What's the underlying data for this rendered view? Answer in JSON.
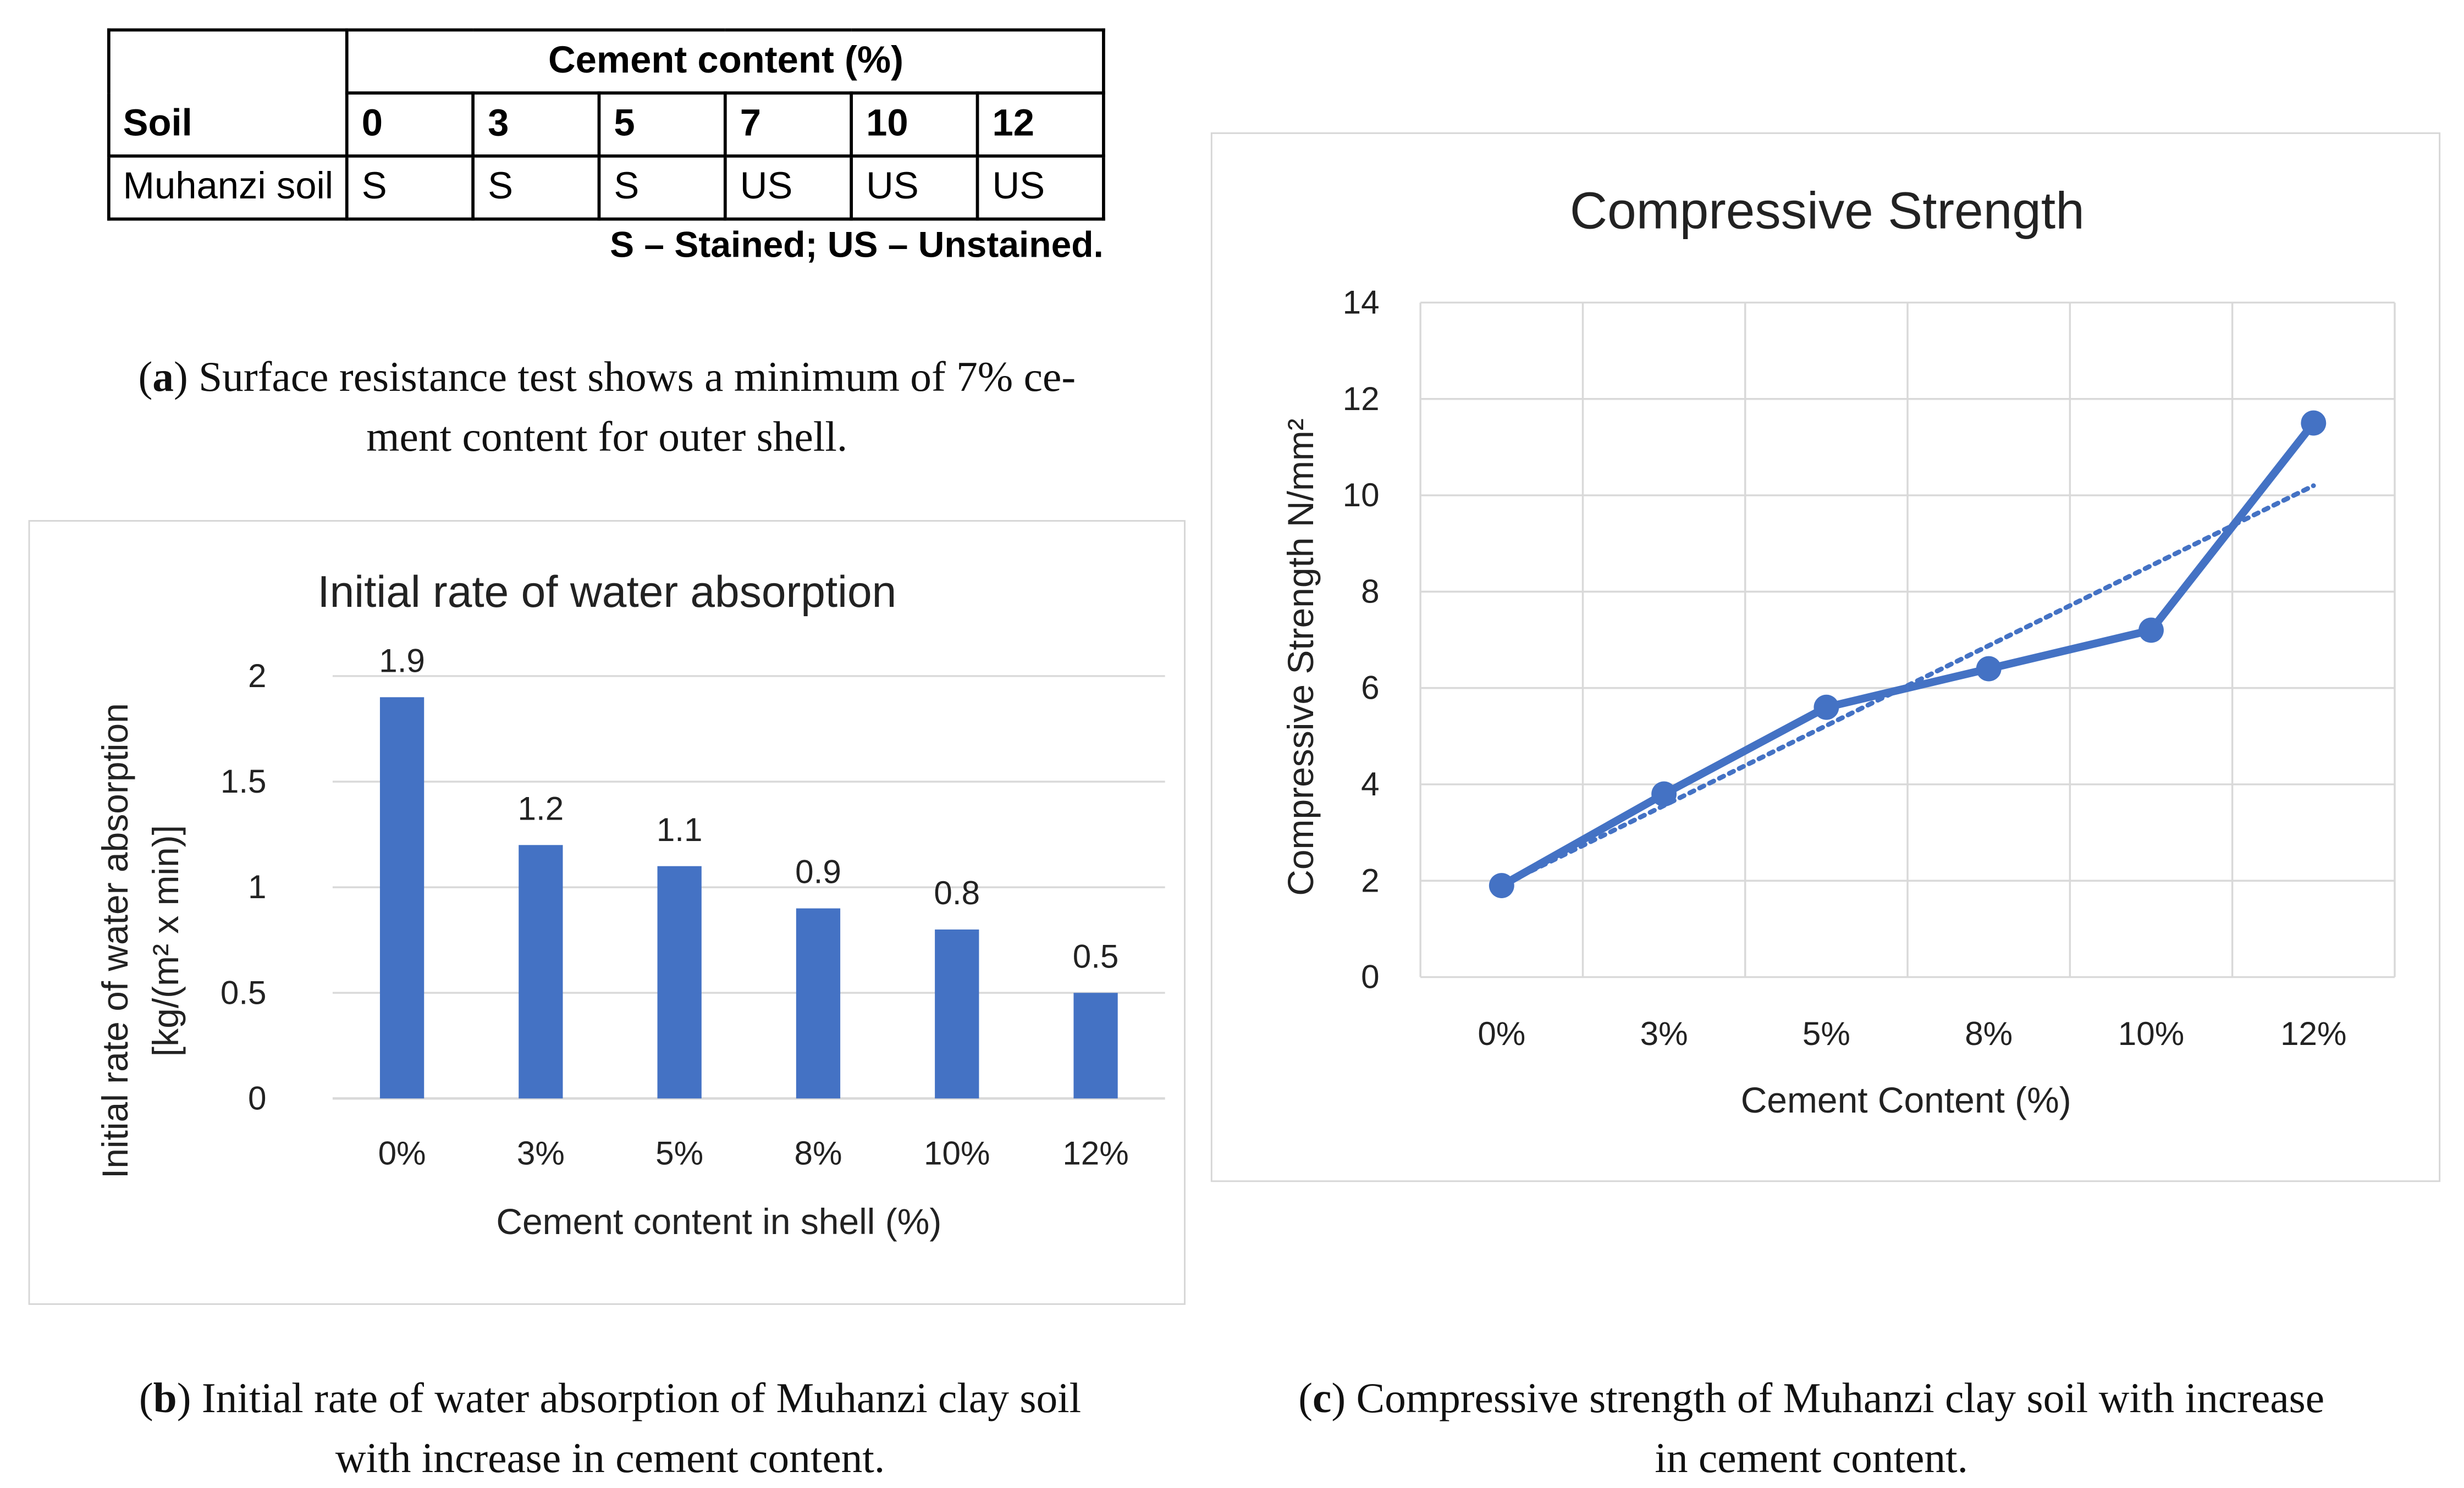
{
  "table": {
    "soil_header": "Soil",
    "cement_header": "Cement content (%)",
    "columns": [
      "0",
      "3",
      "5",
      "7",
      "10",
      "12"
    ],
    "row_label": "Muhanzi soil",
    "row_values": [
      "S",
      "S",
      "S",
      "US",
      "US",
      "US"
    ],
    "note": "S – Stained; US – Unstained."
  },
  "caption_a": {
    "label": "a",
    "line1": "Surface resistance test shows a minimum of 7% ce-",
    "line2": "ment content for outer shell."
  },
  "caption_b": {
    "label": "b",
    "line1": "Initial rate of water absorption of Muhanzi clay soil",
    "line2": "with increase in cement content."
  },
  "caption_c": {
    "label": "c",
    "line1": "Compressive strength of Muhanzi clay soil with increase",
    "line2": "in cement content."
  },
  "colors": {
    "series": "#4472C4",
    "grid": "#d9d9d9",
    "border": "#d6d6d6"
  },
  "chart_data": [
    {
      "type": "bar",
      "title": "Initial rate of water absorption",
      "xlabel": "Cement content in shell (%)",
      "ylabel_line1": "Initial rate of water absorption",
      "ylabel_line2": "[kg/(m² x min)]",
      "categories": [
        "0%",
        "3%",
        "5%",
        "8%",
        "10%",
        "12%"
      ],
      "values": [
        1.9,
        1.2,
        1.1,
        0.9,
        0.8,
        0.5
      ],
      "data_labels": [
        "1.9",
        "1.2",
        "1.1",
        "0.9",
        "0.8",
        "0.5"
      ],
      "ylim": [
        0,
        2
      ],
      "yticks": [
        "0",
        "0.5",
        "1",
        "1.5",
        "2"
      ],
      "grid": true
    },
    {
      "type": "line",
      "title": "Compressive Strength",
      "xlabel": "Cement Content (%)",
      "ylabel": "Compressive Strength N/mm²",
      "categories": [
        "0%",
        "3%",
        "5%",
        "8%",
        "10%",
        "12%"
      ],
      "values": [
        1.9,
        3.8,
        5.6,
        6.4,
        7.2,
        11.5
      ],
      "trendline": {
        "type": "linear",
        "start": 1.9,
        "end": 10.2
      },
      "ylim": [
        0,
        14
      ],
      "yticks": [
        "0",
        "2",
        "4",
        "6",
        "8",
        "10",
        "12",
        "14"
      ],
      "grid": true
    }
  ]
}
